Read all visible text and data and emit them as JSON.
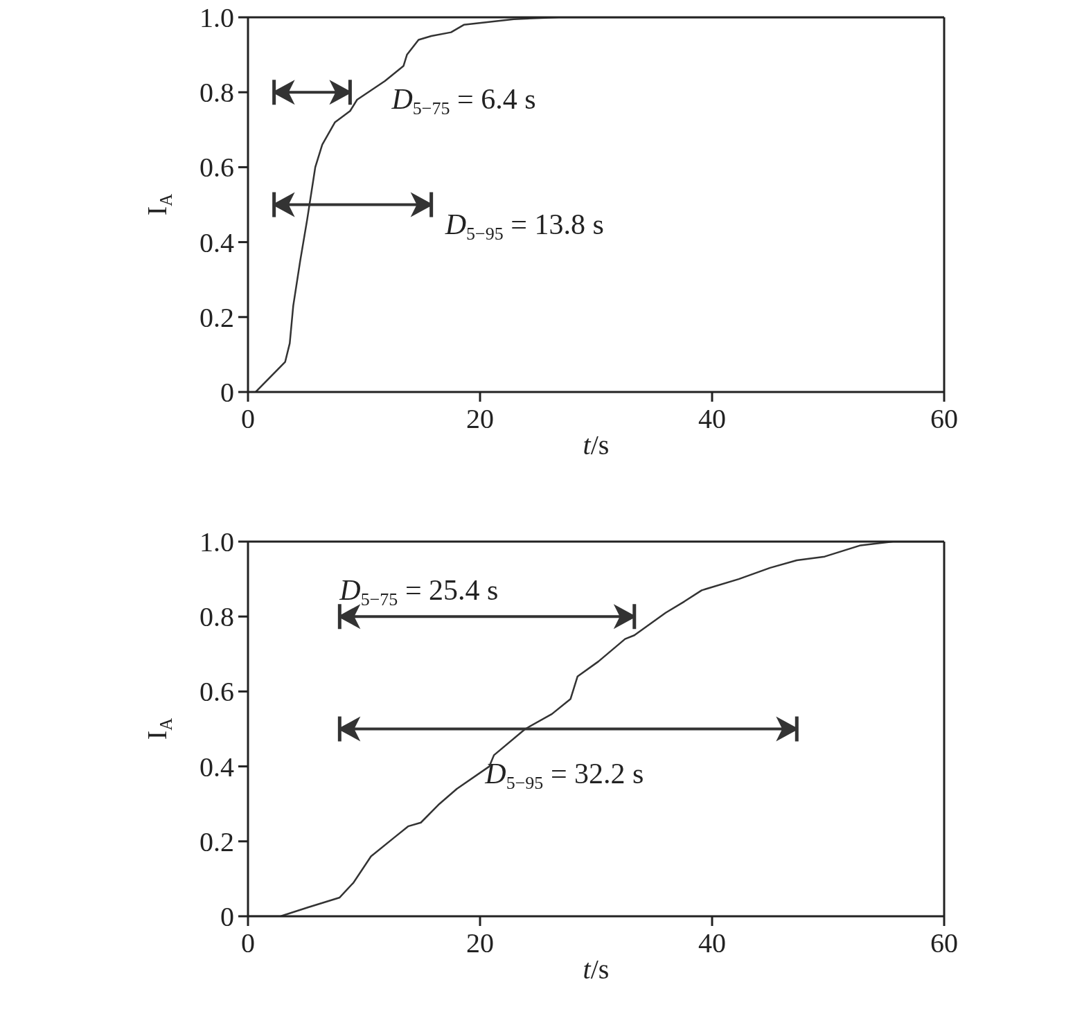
{
  "chart_data": [
    {
      "type": "line",
      "xlabel": "t/s",
      "ylabel": "I$_{A}$",
      "series": [
        {
          "color": "#333333",
          "x": [
            0.66,
            3.2,
            3.6,
            3.9,
            4.5,
            5.1,
            5.8,
            6.4,
            7.5,
            8.8,
            9.4,
            11.8,
            13.4,
            13.7,
            14.7,
            15.8,
            17.5,
            18.6,
            22.9,
            26.8,
            60
          ],
          "values": [
            0,
            0.08,
            0.13,
            0.23,
            0.35,
            0.46,
            0.6,
            0.66,
            0.72,
            0.75,
            0.78,
            0.83,
            0.87,
            0.9,
            0.94,
            0.95,
            0.96,
            0.98,
            0.995,
            1.0,
            1.0
          ]
        }
      ],
      "xlim": [
        0,
        60
      ],
      "ylim": [
        0,
        1
      ],
      "annotations": [
        "D$_{5−75}$ = 6.4 s",
        "D$_{5−95}$ = 13.8 s"
      ],
      "xticks": [
        0,
        20,
        40,
        60
      ],
      "yticks": [
        0,
        0.2,
        0.4,
        0.6,
        0.8,
        {
          "value": 1,
          "label": "1.0"
        }
      ],
      "grid": false,
      "legend": false,
      "marker": "none",
      "line_style": "solid"
    },
    {
      "type": "line",
      "xlabel": "t/s",
      "ylabel": "I$_{A}$",
      "series": [
        {
          "color": "#333333",
          "x": [
            0,
            2.8,
            5.2,
            7.9,
            9.1,
            10.6,
            12.6,
            13.8,
            14.9,
            16.5,
            18.0,
            20.8,
            21.2,
            23.9,
            26.2,
            27.8,
            28.4,
            30.2,
            32.5,
            33.3,
            36.0,
            37.6,
            39.1,
            42.3,
            45.0,
            47.3,
            49.7,
            52.8,
            55.6,
            60
          ],
          "values": [
            0,
            0,
            0.024,
            0.05,
            0.09,
            0.16,
            0.21,
            0.24,
            0.25,
            0.3,
            0.34,
            0.4,
            0.43,
            0.5,
            0.54,
            0.58,
            0.64,
            0.68,
            0.74,
            0.75,
            0.81,
            0.84,
            0.87,
            0.9,
            0.93,
            0.95,
            0.96,
            0.99,
            1.0,
            1.0
          ]
        }
      ],
      "xlim": [
        0,
        60
      ],
      "ylim": [
        0,
        1
      ],
      "annotations": [
        "D$_{5−75}$ = 25.4 s",
        "D$_{5−95}$ = 32.2 s"
      ],
      "xticks": [
        0,
        20,
        40,
        60
      ],
      "yticks": [
        0,
        0.2,
        0.4,
        0.6,
        0.8,
        {
          "value": 1,
          "label": "1.0"
        }
      ],
      "grid": false,
      "legend": false,
      "marker": "none",
      "line_style": "solid"
    }
  ]
}
